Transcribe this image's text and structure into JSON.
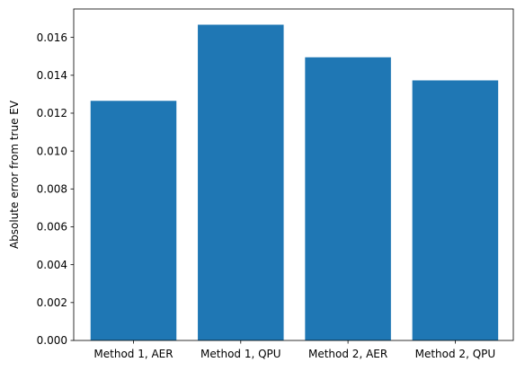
{
  "chart_data": {
    "type": "bar",
    "title": "",
    "xlabel": "",
    "ylabel": "Absolute error from true EV",
    "categories": [
      "Method 1, AER",
      "Method 1, QPU",
      "Method 2, AER",
      "Method 2, QPU"
    ],
    "values": [
      0.01265,
      0.01667,
      0.01495,
      0.01373
    ],
    "ylim": [
      0,
      0.0175
    ],
    "yticks": [
      0.0,
      0.002,
      0.004,
      0.006,
      0.008,
      0.01,
      0.012,
      0.014,
      0.016
    ],
    "ytick_labels": [
      "0.000",
      "0.002",
      "0.004",
      "0.006",
      "0.008",
      "0.010",
      "0.012",
      "0.014",
      "0.016"
    ],
    "bar_color": "#1f77b4",
    "grid": false,
    "legend": "none"
  }
}
